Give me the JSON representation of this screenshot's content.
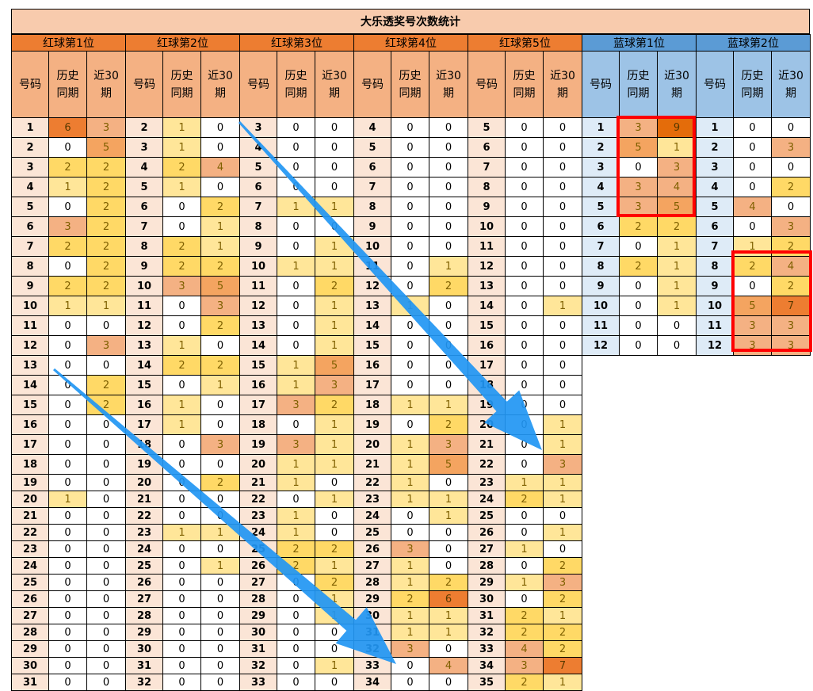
{
  "title": "大乐透奖号次数统计",
  "header": {
    "col_labels": [
      "号码",
      "历史\n同期",
      "近30\n期"
    ]
  },
  "groups": [
    {
      "name": "红球第1位",
      "color": "red",
      "rows": [
        [
          1,
          6,
          3
        ],
        [
          2,
          0,
          5
        ],
        [
          3,
          2,
          2
        ],
        [
          4,
          1,
          2
        ],
        [
          5,
          0,
          2
        ],
        [
          6,
          3,
          2
        ],
        [
          7,
          2,
          2
        ],
        [
          8,
          0,
          2
        ],
        [
          9,
          2,
          2
        ],
        [
          10,
          1,
          1
        ],
        [
          11,
          0,
          0
        ],
        [
          12,
          0,
          3
        ],
        [
          13,
          0,
          0
        ],
        [
          14,
          0,
          2
        ],
        [
          15,
          0,
          2
        ],
        [
          16,
          0,
          0
        ],
        [
          17,
          0,
          0
        ],
        [
          18,
          0,
          0
        ],
        [
          19,
          0,
          0
        ],
        [
          20,
          1,
          0
        ],
        [
          21,
          0,
          0
        ],
        [
          22,
          0,
          0
        ],
        [
          23,
          0,
          0
        ],
        [
          24,
          0,
          0
        ],
        [
          25,
          0,
          0
        ],
        [
          26,
          0,
          0
        ],
        [
          27,
          0,
          0
        ],
        [
          28,
          0,
          0
        ],
        [
          29,
          0,
          0
        ],
        [
          30,
          0,
          0
        ],
        [
          31,
          0,
          0
        ]
      ]
    },
    {
      "name": "红球第2位",
      "color": "red",
      "rows": [
        [
          2,
          1,
          0
        ],
        [
          3,
          1,
          0
        ],
        [
          4,
          2,
          4
        ],
        [
          5,
          1,
          0
        ],
        [
          6,
          0,
          2
        ],
        [
          7,
          0,
          1
        ],
        [
          8,
          2,
          1
        ],
        [
          9,
          2,
          2
        ],
        [
          10,
          3,
          5
        ],
        [
          11,
          0,
          3
        ],
        [
          12,
          0,
          2
        ],
        [
          13,
          1,
          0
        ],
        [
          14,
          2,
          2
        ],
        [
          15,
          0,
          1
        ],
        [
          16,
          1,
          0
        ],
        [
          17,
          1,
          0
        ],
        [
          18,
          0,
          3
        ],
        [
          19,
          0,
          0
        ],
        [
          20,
          0,
          2
        ],
        [
          21,
          0,
          0
        ],
        [
          22,
          0,
          0
        ],
        [
          23,
          1,
          1
        ],
        [
          24,
          0,
          0
        ],
        [
          25,
          0,
          1
        ],
        [
          26,
          0,
          0
        ],
        [
          27,
          0,
          0
        ],
        [
          28,
          0,
          0
        ],
        [
          29,
          0,
          0
        ],
        [
          30,
          0,
          0
        ],
        [
          31,
          0,
          0
        ],
        [
          32,
          0,
          0
        ]
      ]
    },
    {
      "name": "红球第3位",
      "color": "red",
      "rows": [
        [
          3,
          0,
          0
        ],
        [
          4,
          0,
          0
        ],
        [
          5,
          0,
          0
        ],
        [
          6,
          0,
          0
        ],
        [
          7,
          1,
          1
        ],
        [
          8,
          0,
          0
        ],
        [
          9,
          0,
          1
        ],
        [
          10,
          1,
          1
        ],
        [
          11,
          0,
          2
        ],
        [
          12,
          0,
          1
        ],
        [
          13,
          0,
          1
        ],
        [
          14,
          0,
          1
        ],
        [
          15,
          1,
          5
        ],
        [
          16,
          1,
          3
        ],
        [
          17,
          3,
          2
        ],
        [
          18,
          0,
          1
        ],
        [
          19,
          3,
          1
        ],
        [
          20,
          1,
          1
        ],
        [
          21,
          1,
          0
        ],
        [
          22,
          0,
          1
        ],
        [
          23,
          1,
          0
        ],
        [
          24,
          1,
          0
        ],
        [
          25,
          2,
          2
        ],
        [
          26,
          2,
          1
        ],
        [
          27,
          0,
          2
        ],
        [
          28,
          0,
          1
        ],
        [
          29,
          0,
          1
        ],
        [
          30,
          0,
          0
        ],
        [
          31,
          0,
          0
        ],
        [
          32,
          0,
          1
        ],
        [
          33,
          0,
          0
        ]
      ]
    },
    {
      "name": "红球第4位",
      "color": "red",
      "rows": [
        [
          4,
          0,
          0
        ],
        [
          5,
          0,
          0
        ],
        [
          6,
          0,
          0
        ],
        [
          7,
          0,
          0
        ],
        [
          8,
          0,
          0
        ],
        [
          9,
          0,
          0
        ],
        [
          10,
          0,
          0
        ],
        [
          11,
          0,
          1
        ],
        [
          12,
          0,
          2
        ],
        [
          13,
          1,
          0
        ],
        [
          14,
          0,
          0
        ],
        [
          15,
          0,
          0
        ],
        [
          16,
          0,
          0
        ],
        [
          17,
          0,
          0
        ],
        [
          18,
          1,
          1
        ],
        [
          19,
          0,
          2
        ],
        [
          20,
          1,
          3
        ],
        [
          21,
          1,
          5
        ],
        [
          22,
          1,
          0
        ],
        [
          23,
          1,
          1
        ],
        [
          24,
          0,
          1
        ],
        [
          25,
          0,
          0
        ],
        [
          26,
          3,
          0
        ],
        [
          27,
          1,
          0
        ],
        [
          28,
          1,
          2
        ],
        [
          29,
          2,
          6
        ],
        [
          30,
          1,
          1
        ],
        [
          31,
          1,
          1
        ],
        [
          32,
          3,
          0
        ],
        [
          33,
          0,
          4
        ],
        [
          34,
          0,
          0
        ]
      ]
    },
    {
      "name": "红球第5位",
      "color": "red",
      "rows": [
        [
          5,
          0,
          0
        ],
        [
          6,
          0,
          0
        ],
        [
          7,
          0,
          0
        ],
        [
          8,
          0,
          0
        ],
        [
          9,
          0,
          0
        ],
        [
          10,
          0,
          0
        ],
        [
          11,
          0,
          0
        ],
        [
          12,
          0,
          0
        ],
        [
          13,
          0,
          0
        ],
        [
          14,
          0,
          1
        ],
        [
          15,
          0,
          0
        ],
        [
          16,
          0,
          0
        ],
        [
          17,
          0,
          0
        ],
        [
          18,
          0,
          0
        ],
        [
          19,
          0,
          0
        ],
        [
          20,
          0,
          1
        ],
        [
          21,
          0,
          1
        ],
        [
          22,
          0,
          3
        ],
        [
          23,
          1,
          1
        ],
        [
          24,
          2,
          1
        ],
        [
          25,
          0,
          0
        ],
        [
          26,
          0,
          1
        ],
        [
          27,
          1,
          0
        ],
        [
          28,
          0,
          2
        ],
        [
          29,
          1,
          3
        ],
        [
          30,
          0,
          2
        ],
        [
          31,
          2,
          1
        ],
        [
          32,
          2,
          2
        ],
        [
          33,
          4,
          2
        ],
        [
          34,
          3,
          7
        ],
        [
          35,
          2,
          1
        ]
      ]
    },
    {
      "name": "蓝球第1位",
      "color": "blue",
      "rows": [
        [
          1,
          3,
          9
        ],
        [
          2,
          5,
          1
        ],
        [
          3,
          0,
          3
        ],
        [
          4,
          3,
          4
        ],
        [
          5,
          3,
          5
        ],
        [
          6,
          2,
          2
        ],
        [
          7,
          0,
          1
        ],
        [
          8,
          2,
          1
        ],
        [
          9,
          0,
          1
        ],
        [
          10,
          0,
          1
        ],
        [
          11,
          0,
          0
        ],
        [
          12,
          0,
          0
        ]
      ]
    },
    {
      "name": "蓝球第2位",
      "color": "blue",
      "rows": [
        [
          1,
          0,
          0
        ],
        [
          2,
          0,
          3
        ],
        [
          3,
          0,
          0
        ],
        [
          4,
          0,
          2
        ],
        [
          5,
          4,
          0
        ],
        [
          6,
          0,
          3
        ],
        [
          7,
          1,
          2
        ],
        [
          8,
          2,
          4
        ],
        [
          9,
          0,
          2
        ],
        [
          10,
          5,
          7
        ],
        [
          11,
          3,
          3
        ],
        [
          12,
          3,
          3
        ]
      ]
    }
  ],
  "highlights": [
    "blue1-rows1to5-history-recent",
    "blue2-rows8to12-history-recent"
  ],
  "arrows": [
    "arrow-from-red3-to-red5",
    "arrow-from-red1-to-red4"
  ],
  "colors": {
    "title_bg": "#f8cbad",
    "red_group_bg": "#ed7d31",
    "blue_group_bg": "#5b9bd5",
    "highlight_border": "#ff0000",
    "arrow_color": "#2196f3"
  }
}
